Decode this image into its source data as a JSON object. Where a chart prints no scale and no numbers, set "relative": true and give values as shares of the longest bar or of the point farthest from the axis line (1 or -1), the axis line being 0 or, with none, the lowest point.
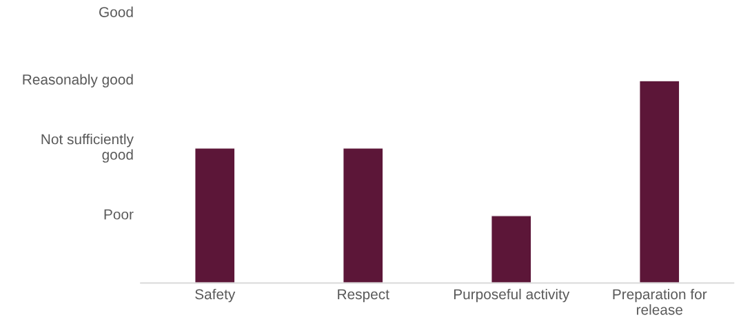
{
  "chart_data": {
    "type": "bar",
    "categories": [
      "Safety",
      "Respect",
      "Purposeful activity",
      "Preparation for\nrelease"
    ],
    "values": [
      0.667,
      0.667,
      0.333,
      1
    ],
    "color": "#5c1638",
    "relative": true,
    "annotations": [
      "Good",
      "Reasonably good",
      "Not sufficiently\ngood",
      "Poor"
    ],
    "grid": false,
    "legend": false
  }
}
